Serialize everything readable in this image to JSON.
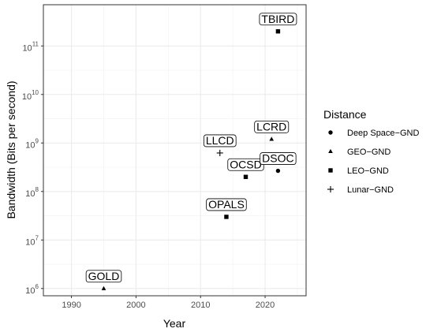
{
  "chart_data": {
    "type": "scatter",
    "xlabel": "Year",
    "ylabel": "Bandwidth (Bits per second)",
    "x_ticks": [
      1990,
      2000,
      2010,
      2020
    ],
    "y_ticks": [
      {
        "value": 1000000.0,
        "base": "10",
        "exp": "6"
      },
      {
        "value": 10000000.0,
        "base": "10",
        "exp": "7"
      },
      {
        "value": 100000000.0,
        "base": "10",
        "exp": "8"
      },
      {
        "value": 1000000000.0,
        "base": "10",
        "exp": "9"
      },
      {
        "value": 10000000000.0,
        "base": "10",
        "exp": "10"
      },
      {
        "value": 100000000000.0,
        "base": "10",
        "exp": "11"
      }
    ],
    "y_scale": "log10",
    "grid": true,
    "legend": {
      "title": "Distance",
      "position": "right",
      "entries": [
        {
          "name": "Deep Space−GND",
          "shape": "circle"
        },
        {
          "name": "GEO−GND",
          "shape": "triangle"
        },
        {
          "name": "LEO−GND",
          "shape": "square"
        },
        {
          "name": "Lunar−GND",
          "shape": "plus"
        }
      ]
    },
    "points": [
      {
        "label": "GOLD",
        "x": 1995,
        "y": 1000000,
        "distance": "GEO−GND"
      },
      {
        "label": "OPALS",
        "x": 2014,
        "y": 30000000,
        "distance": "LEO−GND"
      },
      {
        "label": "OCSD",
        "x": 2017,
        "y": 200000000,
        "distance": "LEO−GND"
      },
      {
        "label": "LLCD",
        "x": 2013,
        "y": 622000000,
        "distance": "Lunar−GND"
      },
      {
        "label": "LCRD",
        "x": 2021,
        "y": 1200000000,
        "distance": "GEO−GND"
      },
      {
        "label": "DSOC",
        "x": 2022,
        "y": 267000000,
        "distance": "Deep Space−GND"
      },
      {
        "label": "TBIRD",
        "x": 2022,
        "y": 200000000000,
        "distance": "LEO−GND"
      }
    ]
  }
}
